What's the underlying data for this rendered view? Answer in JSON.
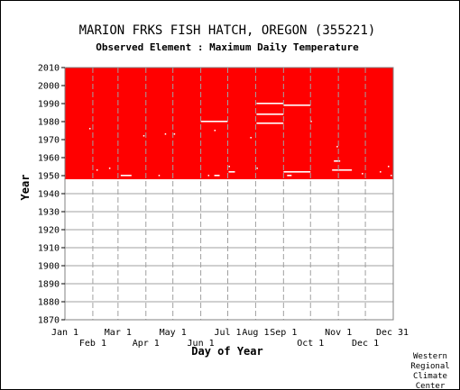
{
  "chart_data": {
    "type": "heatmap",
    "title": "MARION FRKS FISH HATCH, OREGON   (355221)",
    "subtitle": "Observed Element : Maximum Daily Temperature",
    "xlabel": "Day of Year",
    "ylabel": "Year",
    "xlim": [
      1,
      366
    ],
    "ylim": [
      1870,
      2010
    ],
    "x_ticks_top": [
      {
        "label": "Jan 1",
        "day": 1
      },
      {
        "label": "Mar 1",
        "day": 60
      },
      {
        "label": "May 1",
        "day": 121
      },
      {
        "label": "Jul 1",
        "day": 182
      },
      {
        "label": "Aug 1",
        "day": 213
      },
      {
        "label": "Sep 1",
        "day": 244
      },
      {
        "label": "Nov 1",
        "day": 305
      },
      {
        "label": "Dec 31",
        "day": 365
      }
    ],
    "x_ticks_bottom": [
      {
        "label": "Feb 1",
        "day": 32
      },
      {
        "label": "Apr 1",
        "day": 91
      },
      {
        "label": "Jun 1",
        "day": 152
      },
      {
        "label": "Oct 1",
        "day": 274
      },
      {
        "label": "Dec 1",
        "day": 335
      }
    ],
    "y_ticks": [
      1870,
      1880,
      1890,
      1900,
      1910,
      1920,
      1930,
      1940,
      1950,
      1960,
      1970,
      1980,
      1990,
      2000,
      2010
    ],
    "data_color": "#ff0000",
    "observed_range": {
      "day_start": 1,
      "day_end": 366,
      "year_start": 1948,
      "year_end": 2010
    },
    "missing_segments": [
      {
        "year": 1990,
        "day_start": 214,
        "day_end": 243
      },
      {
        "year": 1989,
        "day_start": 244,
        "day_end": 273
      },
      {
        "year": 1984,
        "day_start": 214,
        "day_end": 243
      },
      {
        "year": 1980,
        "day_start": 152,
        "day_end": 181
      },
      {
        "year": 1979,
        "day_start": 214,
        "day_end": 243
      },
      {
        "year": 1980,
        "day_start": 274,
        "day_end": 274
      },
      {
        "year": 1976,
        "day_start": 28,
        "day_end": 28
      },
      {
        "year": 1975,
        "day_start": 167,
        "day_end": 167
      },
      {
        "year": 1973,
        "day_start": 112,
        "day_end": 112
      },
      {
        "year": 1973,
        "day_start": 122,
        "day_end": 122
      },
      {
        "year": 1972,
        "day_start": 88,
        "day_end": 88
      },
      {
        "year": 1971,
        "day_start": 207,
        "day_end": 207
      },
      {
        "year": 1966,
        "day_start": 303,
        "day_end": 303
      },
      {
        "year": 1958,
        "day_start": 300,
        "day_end": 306
      },
      {
        "year": 1955,
        "day_start": 183,
        "day_end": 183
      },
      {
        "year": 1955,
        "day_start": 360,
        "day_end": 360
      },
      {
        "year": 1954,
        "day_start": 50,
        "day_end": 50
      },
      {
        "year": 1954,
        "day_start": 214,
        "day_end": 214
      },
      {
        "year": 1953,
        "day_start": 36,
        "day_end": 36
      },
      {
        "year": 1953,
        "day_start": 298,
        "day_end": 319
      },
      {
        "year": 1952,
        "day_start": 183,
        "day_end": 189
      },
      {
        "year": 1952,
        "day_start": 244,
        "day_end": 273
      },
      {
        "year": 1952,
        "day_start": 351,
        "day_end": 351
      },
      {
        "year": 1951,
        "day_start": 331,
        "day_end": 331
      },
      {
        "year": 1950,
        "day_start": 63,
        "day_end": 74
      },
      {
        "year": 1950,
        "day_start": 105,
        "day_end": 105
      },
      {
        "year": 1950,
        "day_start": 160,
        "day_end": 160
      },
      {
        "year": 1950,
        "day_start": 167,
        "day_end": 172
      },
      {
        "year": 1950,
        "day_start": 248,
        "day_end": 252
      },
      {
        "year": 1950,
        "day_start": 363,
        "day_end": 363
      }
    ],
    "grid": true
  },
  "credit": [
    "Western",
    "Regional",
    "Climate",
    "Center"
  ]
}
